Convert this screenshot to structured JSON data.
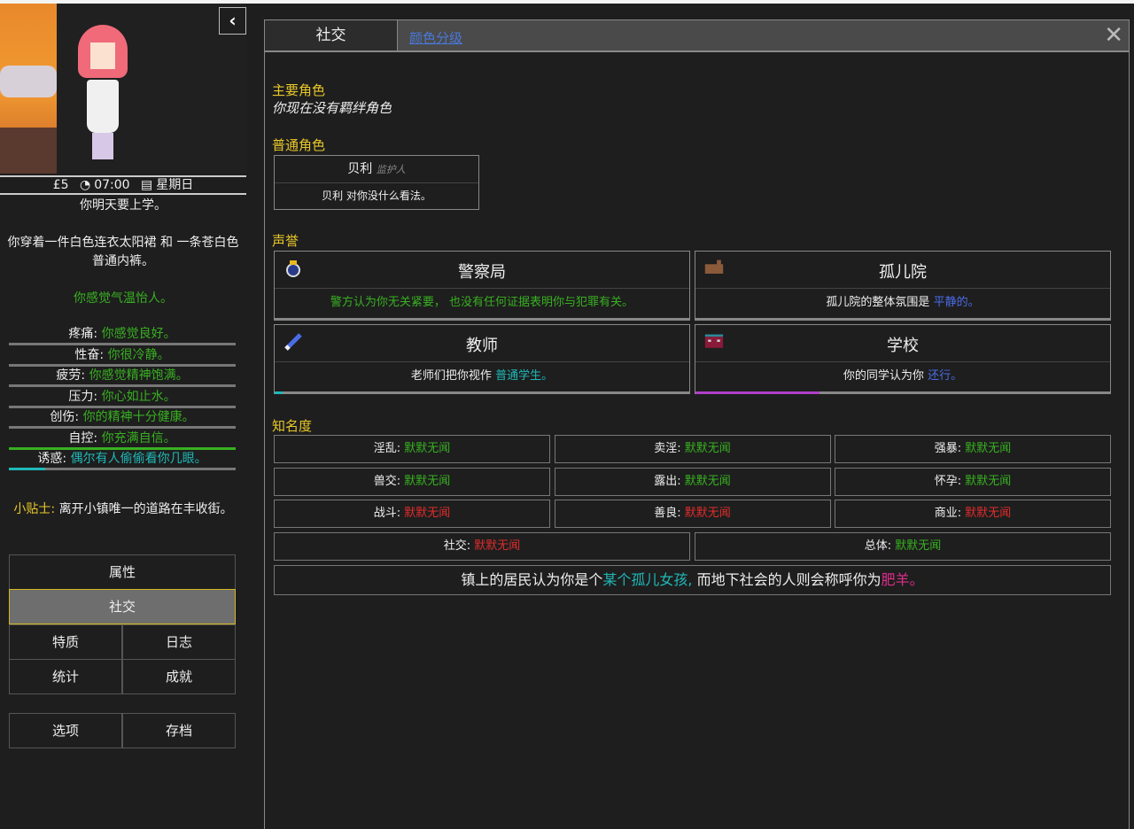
{
  "sidebar": {
    "collapse_icon": "chevron-left-icon",
    "status": {
      "money": "£5",
      "time": "07:00",
      "day": "星期日"
    },
    "notice": "你明天要上学。",
    "clothing": "你穿着一件白色连衣太阳裙 和 一条苍白色普通内裤。",
    "temperature": "你感觉气温怡人。",
    "stats": [
      {
        "label": "疼痛:",
        "value": "你感觉良好。",
        "color": "#38b021",
        "level": 0,
        "bar_color": "#777777"
      },
      {
        "label": "性奋:",
        "value": "你很冷静。",
        "color": "#38b021",
        "level": 0,
        "bar_color": "#777777"
      },
      {
        "label": "疲劳:",
        "value": "你感觉精神饱满。",
        "color": "#38b021",
        "level": 0,
        "bar_color": "#777777"
      },
      {
        "label": "压力:",
        "value": "你心如止水。",
        "color": "#38b021",
        "level": 0,
        "bar_color": "#777777"
      },
      {
        "label": "创伤:",
        "value": "你的精神十分健康。",
        "color": "#38b021",
        "level": 0,
        "bar_color": "#777777"
      },
      {
        "label": "自控:",
        "value": "你充满自信。",
        "color": "#38b021",
        "level": 100,
        "bar_color": "#38b021"
      },
      {
        "label": "诱惑:",
        "value": "偶尔有人偷偷看你几眼。",
        "color": "#20b8b8",
        "level": 16,
        "bar_color": "#20b8b8"
      }
    ],
    "tip_label": "小贴士:",
    "tip_text": "离开小镇唯一的道路在丰收街。",
    "nav": {
      "attributes": "属性",
      "social": "社交",
      "traits": "特质",
      "journal": "日志",
      "statistics": "统计",
      "achievements": "成就",
      "options": "选项",
      "saves": "存档"
    }
  },
  "main": {
    "tab": "社交",
    "color_link": "颜色分级",
    "close_icon": "close-icon",
    "primary_heading": "主要角色",
    "primary_text": "你现在没有羁绊角色",
    "normal_heading": "普通角色",
    "npc": {
      "name": "贝利",
      "role": "监护人",
      "opinion": "贝利 对你没什么看法。"
    },
    "reputation_heading": "声誉",
    "reputation": [
      {
        "title": "警察局",
        "icon": "police-badge-icon",
        "text": "警方认为你无关紧要， 也没有任何证据表明你与犯罪有关。",
        "highlight": "",
        "progress": 0
      },
      {
        "title": "孤儿院",
        "icon": "orphanage-building-icon",
        "text": "孤儿院的整体氛围是 ",
        "highlight": "平静的。",
        "progress": 0
      },
      {
        "title": "教师",
        "icon": "pencil-icon",
        "text": "老师们把你视作 ",
        "highlight": "普通学生。",
        "progress": 2,
        "bar_color": "#20b8b8"
      },
      {
        "title": "学校",
        "icon": "school-building-icon",
        "text": "你的同学认为你 ",
        "highlight": "还行。",
        "progress": 30,
        "bar_color": "#b040c8"
      }
    ],
    "fame_heading": "知名度",
    "fame": [
      {
        "label": "淫乱:",
        "value": "默默无闻",
        "color": "#38b021"
      },
      {
        "label": "卖淫:",
        "value": "默默无闻",
        "color": "#38b021"
      },
      {
        "label": "强暴:",
        "value": "默默无闻",
        "color": "#38b021"
      },
      {
        "label": "兽交:",
        "value": "默默无闻",
        "color": "#38b021"
      },
      {
        "label": "露出:",
        "value": "默默无闻",
        "color": "#38b021"
      },
      {
        "label": "怀孕:",
        "value": "默默无闻",
        "color": "#38b021"
      },
      {
        "label": "战斗:",
        "value": "默默无闻",
        "color": "#e02c2c"
      },
      {
        "label": "善良:",
        "value": "默默无闻",
        "color": "#e02c2c"
      },
      {
        "label": "商业:",
        "value": "默默无闻",
        "color": "#e02c2c"
      },
      {
        "label": "社交:",
        "value": "默默无闻",
        "color": "#e02c2c"
      },
      {
        "label": "总体:",
        "value": "默默无闻",
        "color": "#38b021"
      }
    ],
    "summary": {
      "pre": "镇上的居民认为你是个",
      "title": "某个孤儿女孩,",
      "mid": " 而地下社会的人则会称呼你为",
      "nickname": "肥羊。"
    }
  }
}
